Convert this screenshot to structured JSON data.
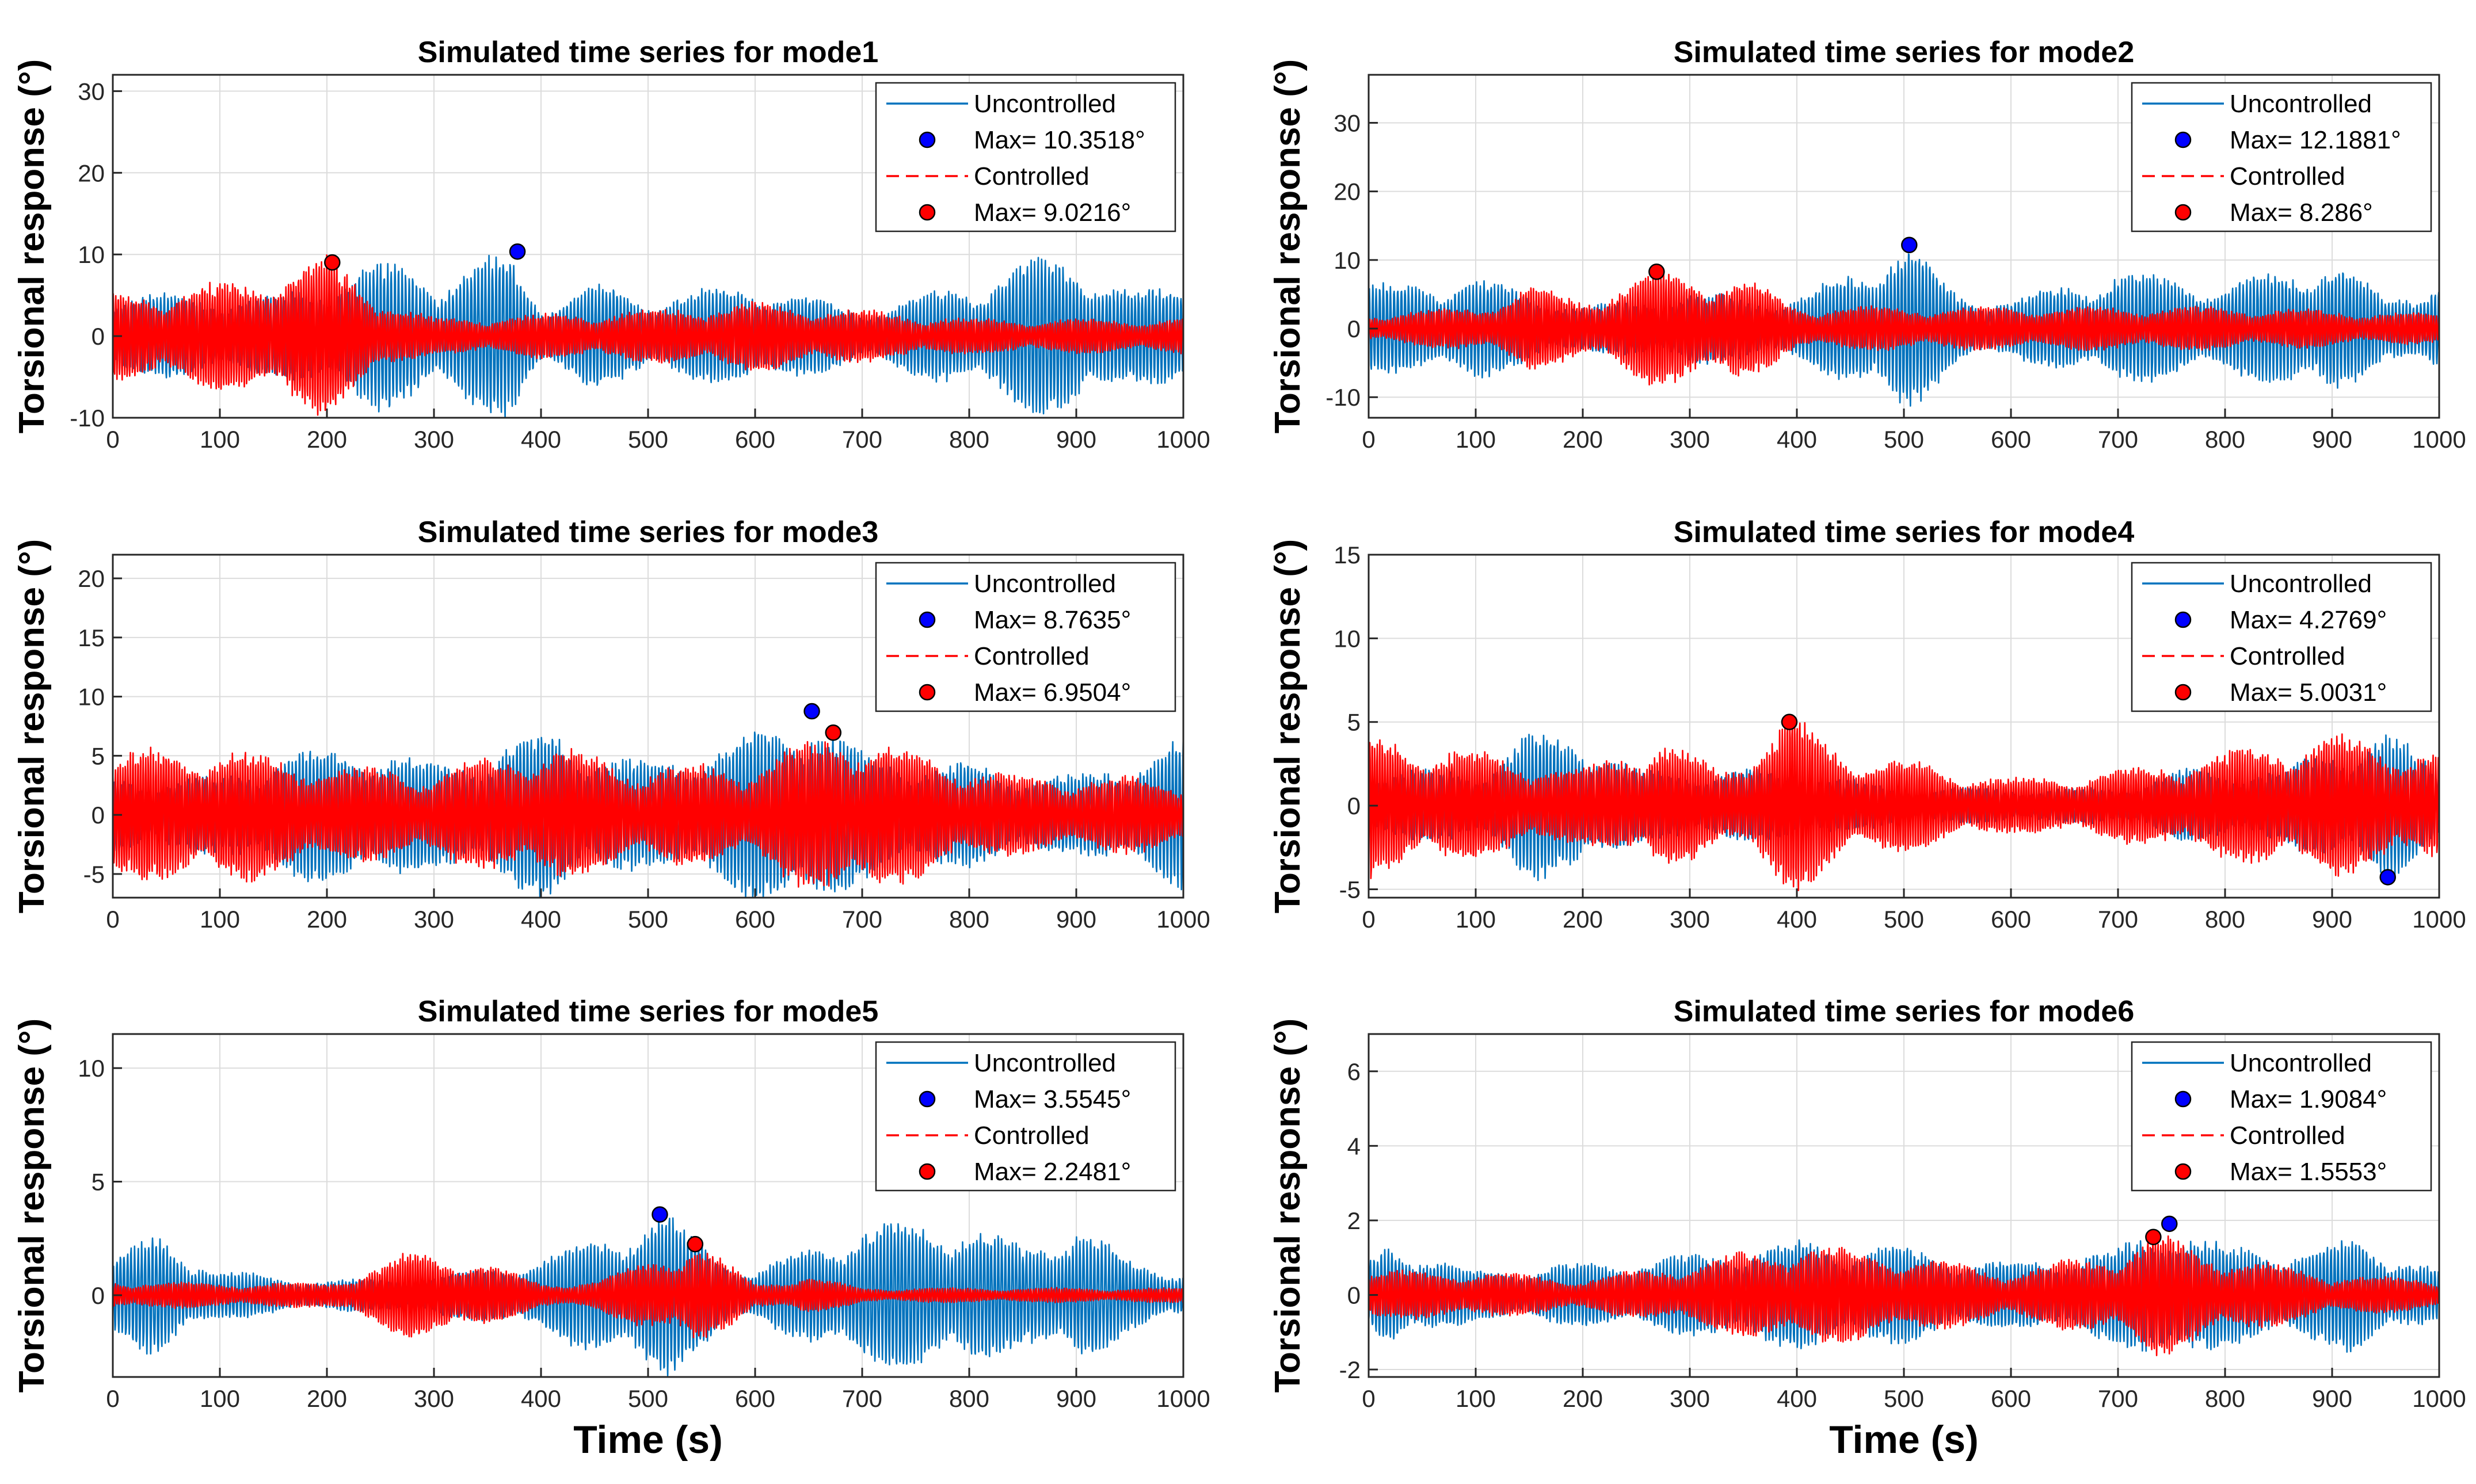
{
  "figure": {
    "xlabel_bottom": "Time (s)"
  },
  "chart_data": [
    {
      "type": "line",
      "title": "Simulated time series for mode1",
      "xlabel": "",
      "ylabel": "Torsional response (°)",
      "xlim": [
        0,
        1000
      ],
      "ylim": [
        -10,
        32
      ],
      "xticks": [
        0,
        100,
        200,
        300,
        400,
        500,
        600,
        700,
        800,
        900,
        1000
      ],
      "yticks": [
        -10,
        0,
        10,
        20,
        30
      ],
      "grid": true,
      "legend_position": "top-right",
      "series": [
        {
          "name": "Uncontrolled",
          "color": "#0072BD",
          "style": "solid",
          "envelope": [
            [
              0,
              5
            ],
            [
              150,
              4.5
            ],
            [
              250,
              8.5
            ],
            [
              300,
              7
            ],
            [
              370,
              9.5
            ],
            [
              400,
              4
            ],
            [
              450,
              6
            ],
            [
              500,
              4.5
            ],
            [
              600,
              6
            ],
            [
              700,
              3
            ],
            [
              800,
              6
            ],
            [
              850,
              8.5
            ],
            [
              900,
              9.5
            ],
            [
              950,
              5
            ],
            [
              1000,
              6
            ]
          ]
        },
        {
          "name": "Controlled",
          "color": "#FF0000",
          "style": "dashed",
          "envelope": [
            [
              0,
              5
            ],
            [
              100,
              6
            ],
            [
              200,
              9
            ],
            [
              260,
              4
            ],
            [
              300,
              2
            ],
            [
              500,
              3
            ],
            [
              600,
              4
            ],
            [
              700,
              3
            ],
            [
              800,
              2
            ],
            [
              1000,
              2
            ]
          ]
        }
      ],
      "markers": [
        {
          "label": "Max= 10.3518°",
          "color": "#0000FF",
          "x": 378,
          "y": 10.3518
        },
        {
          "label": "Max= 9.0216°",
          "color": "#FF0000",
          "x": 205,
          "y": 9.0216
        }
      ]
    },
    {
      "type": "line",
      "title": "Simulated time series for mode2",
      "xlabel": "",
      "ylabel": "Torsional response (°)",
      "xlim": [
        0,
        1000
      ],
      "ylim": [
        -13,
        37
      ],
      "xticks": [
        0,
        100,
        200,
        300,
        400,
        500,
        600,
        700,
        800,
        900,
        1000
      ],
      "yticks": [
        -10,
        0,
        10,
        20,
        30
      ],
      "grid": true,
      "legend_position": "top-right",
      "series": [
        {
          "name": "Uncontrolled",
          "color": "#0072BD",
          "style": "solid",
          "envelope": [
            [
              0,
              6
            ],
            [
              100,
              7
            ],
            [
              200,
              3
            ],
            [
              300,
              5
            ],
            [
              400,
              4
            ],
            [
              500,
              12
            ],
            [
              550,
              5
            ],
            [
              600,
              4
            ],
            [
              700,
              8
            ],
            [
              800,
              6
            ],
            [
              900,
              10
            ],
            [
              950,
              4
            ],
            [
              1000,
              7
            ]
          ]
        },
        {
          "name": "Controlled",
          "color": "#FF0000",
          "style": "dashed",
          "envelope": [
            [
              0,
              2
            ],
            [
              100,
              3
            ],
            [
              150,
              6
            ],
            [
              200,
              4
            ],
            [
              270,
              8
            ],
            [
              350,
              7
            ],
            [
              400,
              3
            ],
            [
              500,
              3
            ],
            [
              600,
              3
            ],
            [
              700,
              3
            ],
            [
              800,
              3
            ],
            [
              1000,
              2
            ]
          ]
        }
      ],
      "markers": [
        {
          "label": "Max= 12.1881°",
          "color": "#0000FF",
          "x": 505,
          "y": 12.1881
        },
        {
          "label": "Max= 8.286°",
          "color": "#FF0000",
          "x": 269,
          "y": 8.286
        }
      ]
    },
    {
      "type": "line",
      "title": "Simulated time series for mode3",
      "xlabel": "",
      "ylabel": "Torsional response (°)",
      "xlim": [
        0,
        1000
      ],
      "ylim": [
        -7,
        22
      ],
      "xticks": [
        0,
        100,
        200,
        300,
        400,
        500,
        600,
        700,
        800,
        900,
        1000
      ],
      "yticks": [
        -5,
        0,
        5,
        10,
        15,
        20
      ],
      "grid": true,
      "legend_position": "top-right",
      "series": [
        {
          "name": "Uncontrolled",
          "color": "#0072BD",
          "style": "solid",
          "envelope": [
            [
              0,
              3
            ],
            [
              100,
              3
            ],
            [
              150,
              5
            ],
            [
              250,
              5.5
            ],
            [
              300,
              4
            ],
            [
              350,
              5
            ],
            [
              410,
              7
            ],
            [
              450,
              5
            ],
            [
              500,
              4
            ],
            [
              600,
              6.5
            ],
            [
              650,
              8.5
            ],
            [
              700,
              5
            ],
            [
              800,
              4
            ],
            [
              900,
              3
            ],
            [
              1000,
              6
            ]
          ]
        },
        {
          "name": "Controlled",
          "color": "#FF0000",
          "style": "dashed",
          "envelope": [
            [
              0,
              5
            ],
            [
              100,
              5.5
            ],
            [
              200,
              4
            ],
            [
              300,
              3.5
            ],
            [
              400,
              5.5
            ],
            [
              500,
              4
            ],
            [
              600,
              4
            ],
            [
              680,
              7
            ],
            [
              750,
              5
            ],
            [
              850,
              3
            ],
            [
              1000,
              3
            ]
          ]
        }
      ],
      "markers": [
        {
          "label": "Max= 8.7635°",
          "color": "#0000FF",
          "x": 653,
          "y": 8.7635
        },
        {
          "label": "Max= 6.9504°",
          "color": "#FF0000",
          "x": 673,
          "y": 6.9504
        }
      ]
    },
    {
      "type": "line",
      "title": "Simulated time series for mode4",
      "xlabel": "",
      "ylabel": "Torsional response (°)",
      "xlim": [
        0,
        1000
      ],
      "ylim": [
        -5.5,
        15
      ],
      "xticks": [
        0,
        100,
        200,
        300,
        400,
        500,
        600,
        700,
        800,
        900,
        1000
      ],
      "yticks": [
        -5,
        0,
        5,
        10,
        15
      ],
      "grid": true,
      "legend_position": "top-right",
      "series": [
        {
          "name": "Uncontrolled",
          "color": "#0072BD",
          "style": "solid",
          "envelope": [
            [
              0,
              2
            ],
            [
              100,
              2
            ],
            [
              150,
              4
            ],
            [
              200,
              4
            ],
            [
              250,
              2
            ],
            [
              300,
              2
            ],
            [
              400,
              2
            ],
            [
              500,
              1
            ],
            [
              700,
              1
            ],
            [
              750,
              2
            ],
            [
              850,
              2
            ],
            [
              950,
              4.3
            ],
            [
              1000,
              2
            ]
          ]
        },
        {
          "name": "Controlled",
          "color": "#FF0000",
          "style": "dashed",
          "envelope": [
            [
              0,
              4
            ],
            [
              100,
              3
            ],
            [
              200,
              2
            ],
            [
              270,
              4
            ],
            [
              330,
              2
            ],
            [
              395,
              5
            ],
            [
              450,
              3
            ],
            [
              600,
              1.5
            ],
            [
              700,
              2
            ],
            [
              800,
              3
            ],
            [
              900,
              4
            ],
            [
              1000,
              3
            ]
          ]
        }
      ],
      "markers": [
        {
          "label": "Max= 4.2769°",
          "color": "#0000FF",
          "x": 952,
          "y": -4.2769
        },
        {
          "label": "Max= 5.0031°",
          "color": "#FF0000",
          "x": 393,
          "y": 5.0031
        }
      ]
    },
    {
      "type": "line",
      "title": "Simulated time series for mode5",
      "xlabel": "Time (s)",
      "ylabel": "Torsional response (°)",
      "xlim": [
        0,
        1000
      ],
      "ylim": [
        -3.6,
        11.5
      ],
      "xticks": [
        0,
        100,
        200,
        300,
        400,
        500,
        600,
        700,
        800,
        900,
        1000
      ],
      "yticks": [
        0,
        5,
        10
      ],
      "grid": true,
      "legend_position": "top-right",
      "series": [
        {
          "name": "Uncontrolled",
          "color": "#0072BD",
          "style": "solid",
          "envelope": [
            [
              0,
              1.5
            ],
            [
              40,
              2.6
            ],
            [
              100,
              1
            ],
            [
              200,
              0.6
            ],
            [
              300,
              0.8
            ],
            [
              350,
              1.2
            ],
            [
              400,
              1.5
            ],
            [
              510,
              3.5
            ],
            [
              560,
              2
            ],
            [
              600,
              1
            ],
            [
              700,
              3
            ],
            [
              800,
              3
            ],
            [
              850,
              2
            ],
            [
              900,
              3
            ],
            [
              950,
              1.5
            ],
            [
              1000,
              1
            ]
          ]
        },
        {
          "name": "Controlled",
          "color": "#FF0000",
          "style": "dashed",
          "envelope": [
            [
              0,
              0.6
            ],
            [
              100,
              0.5
            ],
            [
              200,
              0.5
            ],
            [
              280,
              1.8
            ],
            [
              340,
              1.5
            ],
            [
              400,
              0.5
            ],
            [
              450,
              0.6
            ],
            [
              545,
              2.2
            ],
            [
              600,
              0.5
            ],
            [
              650,
              0.8
            ],
            [
              700,
              0.3
            ],
            [
              1000,
              0.3
            ]
          ]
        }
      ],
      "markers": [
        {
          "label": "Max= 3.5545°",
          "color": "#0000FF",
          "x": 511,
          "y": 3.5545
        },
        {
          "label": "Max= 2.2481°",
          "color": "#FF0000",
          "x": 544,
          "y": 2.2481
        }
      ]
    },
    {
      "type": "line",
      "title": "Simulated time series for mode6",
      "xlabel": "Time (s)",
      "ylabel": "Torsional response (°)",
      "xlim": [
        0,
        1000
      ],
      "ylim": [
        -2.2,
        7
      ],
      "xticks": [
        0,
        100,
        200,
        300,
        400,
        500,
        600,
        700,
        800,
        900,
        1000
      ],
      "yticks": [
        -2,
        0,
        2,
        4,
        6
      ],
      "grid": true,
      "legend_position": "top-right",
      "series": [
        {
          "name": "Uncontrolled",
          "color": "#0072BD",
          "style": "solid",
          "envelope": [
            [
              0,
              0.8
            ],
            [
              20,
              1.4
            ],
            [
              100,
              0.6
            ],
            [
              200,
              0.8
            ],
            [
              300,
              1
            ],
            [
              400,
              1.4
            ],
            [
              500,
              1.2
            ],
            [
              600,
              0.8
            ],
            [
              700,
              1.2
            ],
            [
              750,
              1.9
            ],
            [
              800,
              1.2
            ],
            [
              900,
              1.2
            ],
            [
              920,
              1.5
            ],
            [
              1000,
              0.6
            ]
          ]
        },
        {
          "name": "Controlled",
          "color": "#FF0000",
          "style": "dashed",
          "envelope": [
            [
              0,
              0.6
            ],
            [
              100,
              0.6
            ],
            [
              200,
              0.4
            ],
            [
              300,
              0.8
            ],
            [
              400,
              1.3
            ],
            [
              500,
              1
            ],
            [
              600,
              0.6
            ],
            [
              700,
              1.1
            ],
            [
              735,
              1.55
            ],
            [
              800,
              1
            ],
            [
              900,
              0.5
            ],
            [
              1000,
              0.4
            ]
          ]
        }
      ],
      "markers": [
        {
          "label": "Max= 1.9084°",
          "color": "#0000FF",
          "x": 748,
          "y": 1.9084
        },
        {
          "label": "Max= 1.5553°",
          "color": "#FF0000",
          "x": 733,
          "y": 1.5553
        }
      ]
    }
  ]
}
